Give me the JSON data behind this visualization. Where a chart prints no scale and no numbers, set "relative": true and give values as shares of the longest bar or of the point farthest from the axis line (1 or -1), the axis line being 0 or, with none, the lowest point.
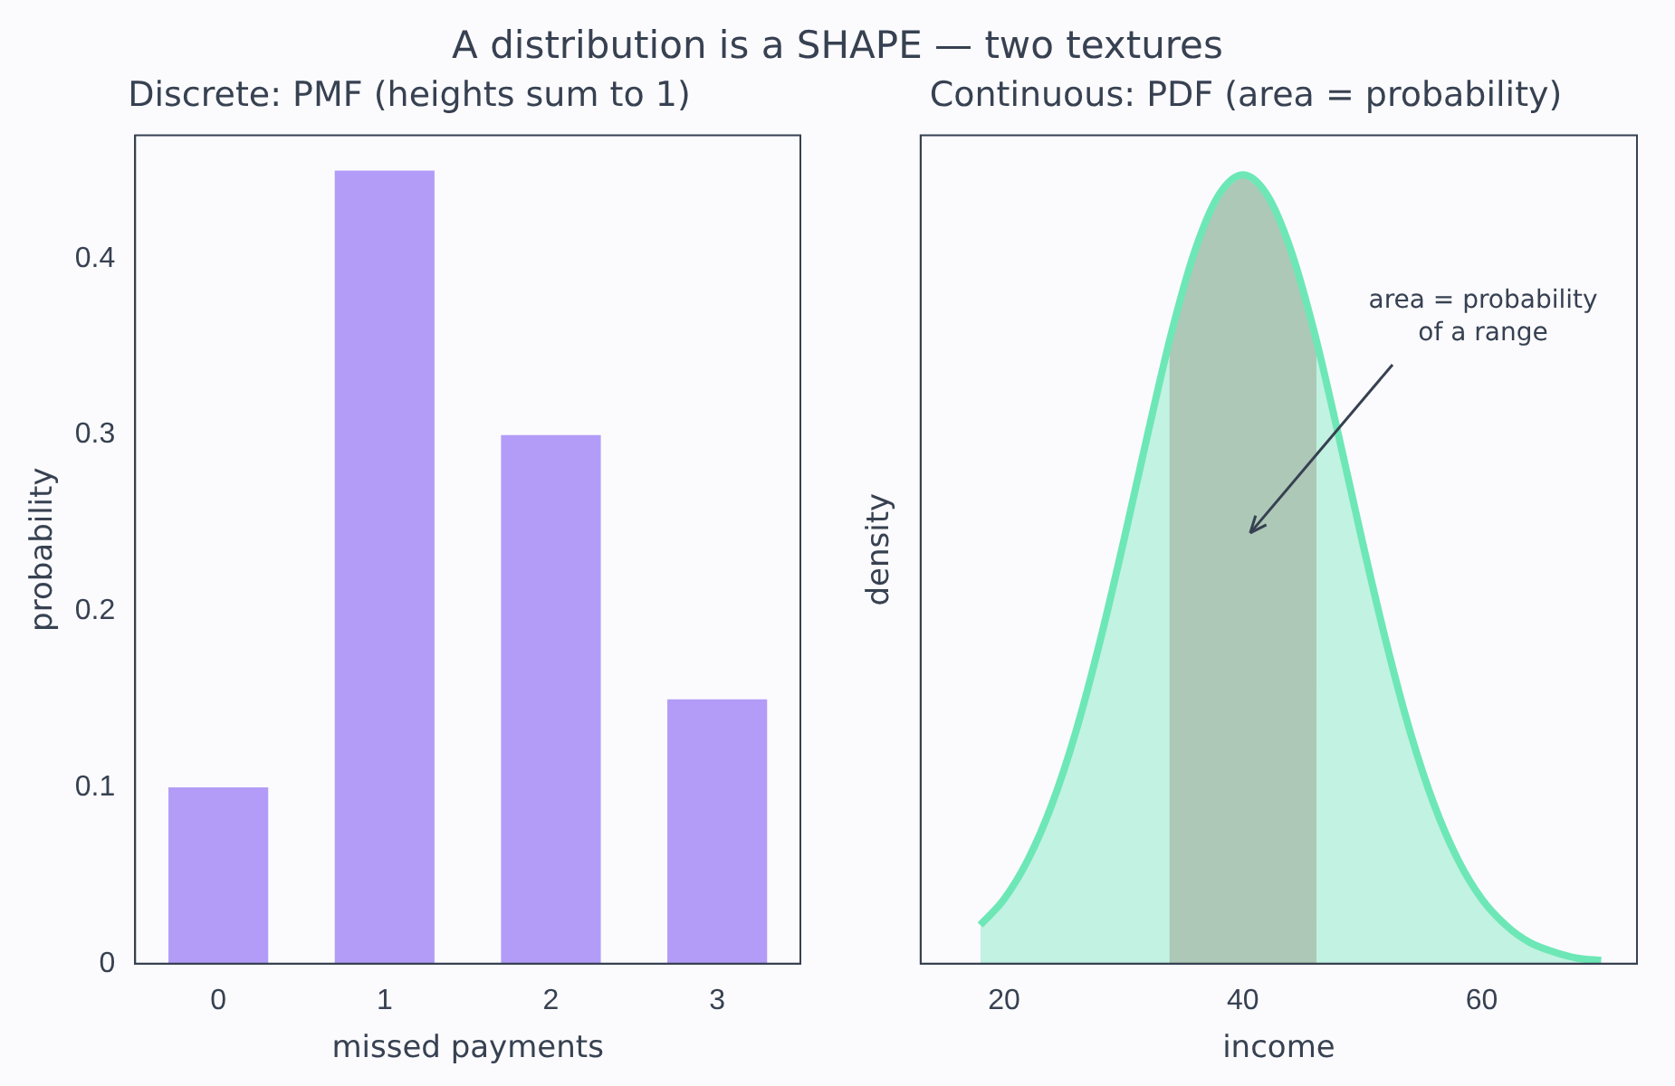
{
  "chart_data": [
    {
      "type": "other",
      "title": "A distribution is a SHAPE — two textures"
    },
    {
      "type": "bar",
      "title": "Discrete: PMF (heights sum to 1)",
      "xlabel": "missed payments",
      "ylabel": "probability",
      "categories": [
        "0",
        "1",
        "2",
        "3"
      ],
      "values": [
        0.1,
        0.45,
        0.3,
        0.15
      ],
      "color": "#b39cf7",
      "ylim": [
        0,
        0.47
      ],
      "yticks": [
        0,
        0.1,
        0.2,
        0.3,
        0.4
      ],
      "grid": false,
      "legend": false
    },
    {
      "type": "area",
      "title": "Continuous: PDF (area = probability)",
      "xlabel": "income",
      "ylabel": "density",
      "relative": true,
      "x": [
        18,
        20,
        22,
        24,
        26,
        28,
        30,
        32,
        34,
        36,
        38,
        40,
        42,
        44,
        46,
        48,
        50,
        52,
        54,
        56,
        58,
        60,
        62,
        64,
        66,
        68,
        70
      ],
      "values": [
        0.049,
        0.082,
        0.132,
        0.202,
        0.294,
        0.407,
        0.535,
        0.67,
        0.799,
        0.905,
        0.975,
        1,
        0.975,
        0.905,
        0.799,
        0.67,
        0.535,
        0.407,
        0.294,
        0.202,
        0.132,
        0.082,
        0.049,
        0.027,
        0.015,
        0.007,
        0.004
      ],
      "color": "#6ee7b7",
      "xlim": [
        13,
        73
      ],
      "xticks": [
        20,
        40,
        60
      ],
      "grid": false,
      "legend": false,
      "bands": [
        {
          "axis": "x",
          "from": 34,
          "to": 46,
          "color": "#d8b4b8"
        }
      ],
      "annotations": [
        "area = probability\nof a range"
      ]
    }
  ]
}
